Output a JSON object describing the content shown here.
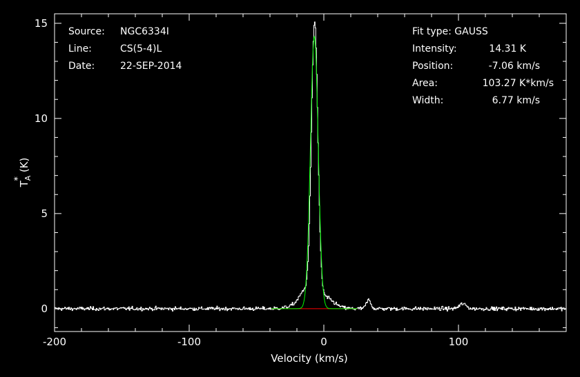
{
  "chart_data": {
    "type": "line",
    "info_left": {
      "source_label": "Source:",
      "source_value": "NGC6334I",
      "line_label": "Line:",
      "line_value": "CS(5-4)L",
      "date_label": "Date:",
      "date_value": "22-SEP-2014"
    },
    "info_right": {
      "fit_label": "Fit type: GAUSS",
      "intensity_label": "Intensity:",
      "intensity_value": "14.31 K",
      "position_label": "Position:",
      "position_value": "-7.06 km/s",
      "area_label": "Area:",
      "area_value": "103.27 K*km/s",
      "width_label": "Width:",
      "width_value": "6.77 km/s"
    },
    "xlabel": "Velocity (km/s)",
    "ylabel_main": "T",
    "ylabel_sup": "*",
    "ylabel_sub": "A",
    "ylabel_unit": "(K)",
    "xlim": [
      -200,
      180
    ],
    "ylim": [
      -1.2,
      15.5
    ],
    "xticks": [
      -200,
      -100,
      0,
      100
    ],
    "xtick_labels": [
      "-200",
      "-100",
      "0",
      "100"
    ],
    "yticks": [
      0,
      5,
      10,
      15
    ],
    "ytick_labels": [
      "0",
      "5",
      "10",
      "15"
    ],
    "fit": {
      "amplitude_K": 14.31,
      "center_kms": -7.06,
      "fwhm_kms": 6.77,
      "baseline_K": 0
    },
    "spectrum_features": [
      {
        "center": -7.06,
        "amp": 14.45,
        "fwhm": 5.6
      },
      {
        "center": -10.0,
        "amp": 0.55,
        "fwhm": 22.0
      },
      {
        "center": -15.0,
        "amp": 0.45,
        "fwhm": 8.0
      },
      {
        "center": 2.0,
        "amp": 0.35,
        "fwhm": 14.0
      },
      {
        "center": 33.0,
        "amp": 0.45,
        "fwhm": 4.0
      },
      {
        "center": 103.0,
        "amp": 0.25,
        "fwhm": 6.0
      }
    ],
    "noise_rms_K": 0.1,
    "colors": {
      "spectrum": "#ffffff",
      "fit": "#00ff00",
      "baseline": "#ff0000",
      "frame": "#ffffff",
      "background": "#000000"
    }
  }
}
